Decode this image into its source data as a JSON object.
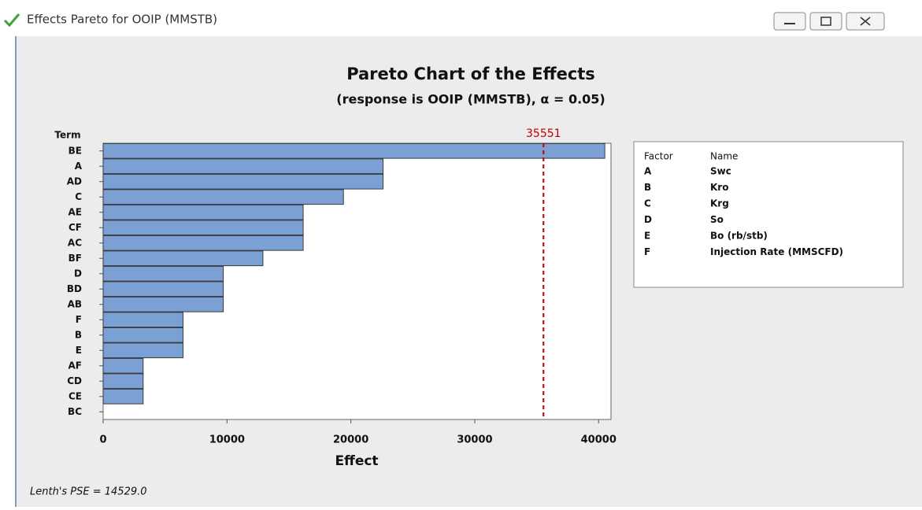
{
  "window_title": "Effects Pareto for OOIP (MMSTB)",
  "chart_data": {
    "type": "bar",
    "orientation": "horizontal",
    "title": "Pareto Chart of the Effects",
    "subtitle": "(response is OOIP (MMSTB), α = 0.05)",
    "y_label": "Term",
    "x_label": "Effect",
    "categories": [
      "BE",
      "A",
      "AD",
      "C",
      "AE",
      "CF",
      "AC",
      "BF",
      "D",
      "BD",
      "AB",
      "F",
      "B",
      "E",
      "AF",
      "CD",
      "CE",
      "BC"
    ],
    "values": [
      40500,
      22600,
      22600,
      19400,
      16150,
      16150,
      16150,
      12900,
      9700,
      9700,
      9700,
      6450,
      6450,
      6450,
      3230,
      3230,
      3230,
      0
    ],
    "color": "#7ba0d4",
    "xlim": [
      0,
      41000
    ],
    "xticks": [
      0,
      10000,
      20000,
      30000,
      40000
    ],
    "ref_line": {
      "value": 35551,
      "color": "#c00000"
    },
    "annotation": "Lenth's PSE = 14529.0",
    "factor_table": {
      "headers": [
        "Factor",
        "Name"
      ],
      "rows": [
        [
          "A",
          "Swc"
        ],
        [
          "B",
          "Kro"
        ],
        [
          "C",
          "Krg"
        ],
        [
          "D",
          "So"
        ],
        [
          "E",
          "Bo (rb/stb)"
        ],
        [
          "F",
          "Injection Rate (MMSCFD)"
        ]
      ]
    }
  }
}
